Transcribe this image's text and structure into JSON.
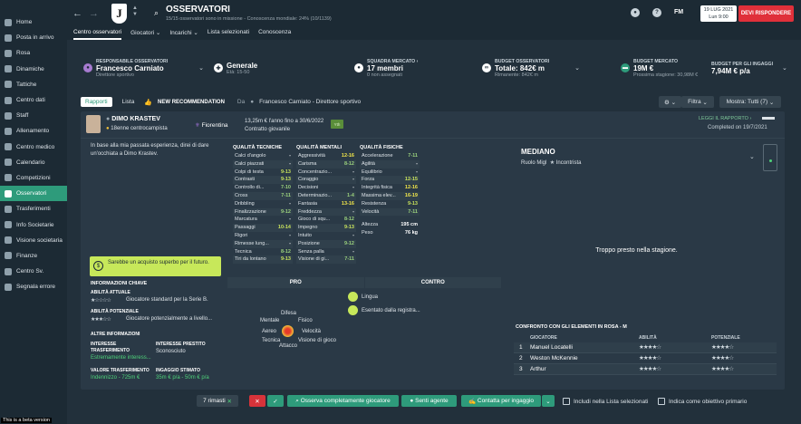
{
  "sidebar": {
    "items": [
      {
        "label": "Home"
      },
      {
        "label": "Posta in arrivo"
      },
      {
        "label": "Rosa"
      },
      {
        "label": "Dinamiche"
      },
      {
        "label": "Tattiche"
      },
      {
        "label": "Centro dati"
      },
      {
        "label": "Staff"
      },
      {
        "label": "Allenamento"
      },
      {
        "label": "Centro medico"
      },
      {
        "label": "Calendario"
      },
      {
        "label": "Competizioni"
      },
      {
        "label": "Osservatori"
      },
      {
        "label": "Trasferimenti"
      },
      {
        "label": "Info Societarie"
      },
      {
        "label": "Visione societaria"
      },
      {
        "label": "Finanze"
      },
      {
        "label": "Centro Sv."
      },
      {
        "label": "Segnala errore"
      }
    ],
    "beta": "This is a beta version"
  },
  "header": {
    "crest": "J",
    "title": "OSSERVATORI",
    "subtitle": "15/15 osservatori sono in missione - Conoscenza mondiale: 24% (10/1139)",
    "fm": "FM",
    "date_line1": "19 LUG 2021",
    "date_line2": "Lun 9:00",
    "respond": "DEVI RISPONDERE",
    "tabs": [
      {
        "label": "Centro osservatori"
      },
      {
        "label": "Giocatori ⌄"
      },
      {
        "label": "Incarichi ⌄"
      },
      {
        "label": "Lista selezionati"
      },
      {
        "label": "Conoscenza"
      }
    ]
  },
  "infobar": {
    "resp_label": "RESPONSABILE OSSERVATORI",
    "resp_name": "Francesco Carniato",
    "resp_role": "Direttore sportivo",
    "gen_name": "Generale",
    "gen_age": "Età: 15-50",
    "squad_label": "SQUADRA MERCATO ›",
    "squad_count": "17 membri",
    "squad_sub": "0 non assegnati",
    "budget_label": "BUDGET OSSERVATORI",
    "budget_total": "Totale: 842€ m",
    "budget_rem": "Rimanente: 842€ m",
    "bm_label": "BUDGET MERCATO",
    "bm_value": "19M €",
    "bm_next": "Prossima stagione: 30,98M €",
    "bi_label": "BUDGET PER GLI INGAGGI",
    "bi_value": "7,94M € p/a"
  },
  "subtabs": {
    "rapporti": "Rapporti",
    "lista": "Lista",
    "newrec": "NEW RECOMMENDATION",
    "da": "Da",
    "da_name": "Francesco Carniato - Direttore sportivo",
    "filtra": "Filtra",
    "mostra": "Mostra: Tutti (7)"
  },
  "player": {
    "name": "DIMO KRASTEV",
    "role": "18enne centrocampista",
    "club": "Fiorentina",
    "contract1": "13,25m € l'anno fino a 30/6/2022",
    "contract2": "Contratto giovanile",
    "badge": "Yth",
    "read_reports": "LEGGI IL RAPPORTO ›",
    "completed": "Completed on 19/7/2021",
    "description": "In base alla mia passata esperienza, direi di dare un'occhiata a Dimo Krastev."
  },
  "verdict": "Sarebbe un acquisto superbo per il futuro.",
  "key_info": {
    "title": "INFORMAZIONI CHIAVE",
    "current_label": "ABILITÀ ATTUALE",
    "current_stars": "★☆☆☆☆",
    "current_text": "Giocatore standard per la Serie B.",
    "potential_label": "ABILITÀ POTENZIALE",
    "potential_stars": "★★★☆☆",
    "potential_text": "Giocatore potenzialmente a livello...",
    "other_title": "ALTRE INFORMAZIONI",
    "interest_label": "INTERESSE TRASFERIMENTO",
    "interest_value": "Estremamente interess...",
    "loan_label": "INTERESSE PRESTITO",
    "loan_value": "Sconosciuto",
    "value_label": "VALORE TRASFERIMENTO",
    "value_value": "Indennizzo - 725m €",
    "wage_label": "INGAGGIO STIMATO",
    "wage_value": "35m € p/a - 50m € p/a"
  },
  "attributes": {
    "technical_title": "QUALITÀ TECNICHE",
    "technical": [
      {
        "name": "Calci d'angolo",
        "value": "-"
      },
      {
        "name": "Calci piazzati",
        "value": "-"
      },
      {
        "name": "Colpi di testa",
        "value": "9-13"
      },
      {
        "name": "Contrasti",
        "value": "9-13"
      },
      {
        "name": "Controllo di...",
        "value": "7-10"
      },
      {
        "name": "Cross",
        "value": "7-11"
      },
      {
        "name": "Dribbling",
        "value": "-"
      },
      {
        "name": "Finalizzazione",
        "value": "9-12"
      },
      {
        "name": "Marcatura",
        "value": "-"
      },
      {
        "name": "Passaggi",
        "value": "10-14"
      },
      {
        "name": "Rigori",
        "value": "-"
      },
      {
        "name": "Rimesse lung...",
        "value": "-"
      },
      {
        "name": "Tecnica",
        "value": "8-12"
      },
      {
        "name": "Tiri da lontano",
        "value": "9-13"
      }
    ],
    "mental_title": "QUALITÀ MENTALI",
    "mental": [
      {
        "name": "Aggressività",
        "value": "12-16"
      },
      {
        "name": "Carisma",
        "value": "8-12"
      },
      {
        "name": "Concentrazio...",
        "value": "-"
      },
      {
        "name": "Coraggio",
        "value": "-"
      },
      {
        "name": "Decisioni",
        "value": "-"
      },
      {
        "name": "Determinazio...",
        "value": "1-4"
      },
      {
        "name": "Fantasia",
        "value": "13-16"
      },
      {
        "name": "Freddezza",
        "value": "-"
      },
      {
        "name": "Gioco di squ...",
        "value": "8-12"
      },
      {
        "name": "Impegno",
        "value": "9-13"
      },
      {
        "name": "Intuito",
        "value": "-"
      },
      {
        "name": "Posizione",
        "value": "9-12"
      },
      {
        "name": "Senza palla",
        "value": "-"
      },
      {
        "name": "Visione di gi...",
        "value": "7-11"
      }
    ],
    "physical_title": "QUALITÀ FISICHE",
    "physical": [
      {
        "name": "Accelerazione",
        "value": "7-11"
      },
      {
        "name": "Agilità",
        "value": "-"
      },
      {
        "name": "Equilibrio",
        "value": "-"
      },
      {
        "name": "Forza",
        "value": "12-15"
      },
      {
        "name": "Integrità fisica",
        "value": "12-16"
      },
      {
        "name": "Massima elev...",
        "value": "16-19"
      },
      {
        "name": "Resistenza",
        "value": "9-13"
      },
      {
        "name": "Velocità",
        "value": "7-11"
      }
    ],
    "height_label": "Altezza",
    "height_value": "195 cm",
    "weight_label": "Peso",
    "weight_value": "76 kg"
  },
  "procontro": {
    "pro": "PRO",
    "contro": "CONTRO",
    "traits": [
      {
        "label": "Lingua"
      },
      {
        "label": "Esentato dalla registra..."
      }
    ]
  },
  "radar": {
    "difesa": "Difesa",
    "mentale": "Mentale",
    "fisico": "Fisico",
    "aereo": "Aereo",
    "velocita": "Velocità",
    "tecnica": "Tecnica",
    "visione": "Visione di gioco",
    "attacco": "Attacco"
  },
  "role_panel": {
    "title": "MEDIANO",
    "ruolo": "Ruolo Migl",
    "incontrista": "Incontrista",
    "early": "Troppo presto nella stagione."
  },
  "comparison": {
    "title": "CONFRONTO CON GLI ELEMENTI IN ROSA - M",
    "col_player": "GIOCATORE",
    "col_ability": "ABILITÀ",
    "col_potential": "POTENZIALE",
    "rows": [
      {
        "n": "1",
        "name": "Manuel Locatelli",
        "ability": "★★★★☆",
        "potential": "★★★★☆"
      },
      {
        "n": "2",
        "name": "Weston McKennie",
        "ability": "★★★★☆",
        "potential": "★★★★☆"
      },
      {
        "n": "3",
        "name": "Arthur",
        "ability": "★★★★☆",
        "potential": "★★★★☆"
      }
    ]
  },
  "bottom": {
    "remaining": "7 rimasti",
    "osserva": "Osserva completamente giocatore",
    "senti": "Senti agente",
    "contatta": "Contatta per ingaggio",
    "chk1": "Includi nella Lista selezionati",
    "chk2": "Indica come obiettivo primario"
  }
}
